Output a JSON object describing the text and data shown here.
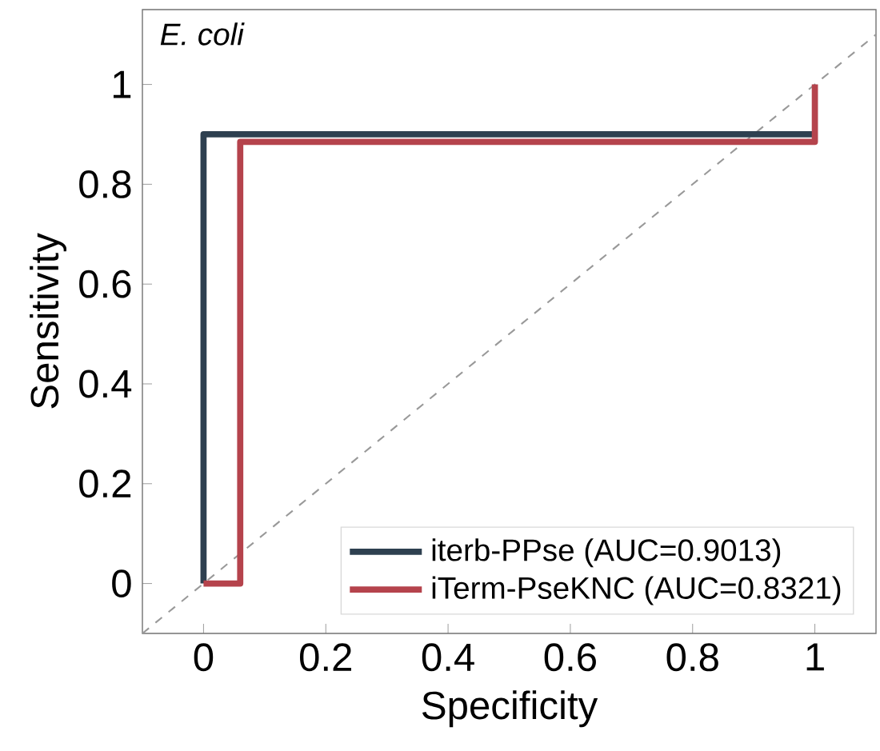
{
  "chart_data": {
    "type": "line",
    "xlabel": "Specificity",
    "ylabel": "Sensitivity",
    "annotations": [
      "E. coli"
    ],
    "xlim": [
      -0.1,
      1.1
    ],
    "ylim": [
      -0.1,
      1.15
    ],
    "xticks": [
      0,
      0.2,
      0.4,
      0.6,
      0.8,
      1
    ],
    "yticks": [
      0,
      0.2,
      0.4,
      0.6,
      0.8,
      1
    ],
    "grid": false,
    "legend": "bottom right",
    "marker": "none",
    "series": [
      {
        "name": "iterb-PPse (AUC=0.9013)",
        "color": "#2e4050",
        "x": [
          0,
          0,
          1
        ],
        "values": [
          0,
          0.9,
          0.9
        ]
      },
      {
        "name": "iTerm-PseKNC (AUC=0.8321)",
        "color": "#b5434c",
        "x": [
          0,
          0.06,
          0.06,
          1,
          1
        ],
        "values": [
          0,
          0,
          0.885,
          0.885,
          1
        ]
      },
      {
        "color": "#999999",
        "line_style": "dashed",
        "x": [
          -0.1,
          1.1
        ],
        "values": [
          -0.1,
          1.1
        ]
      }
    ]
  }
}
